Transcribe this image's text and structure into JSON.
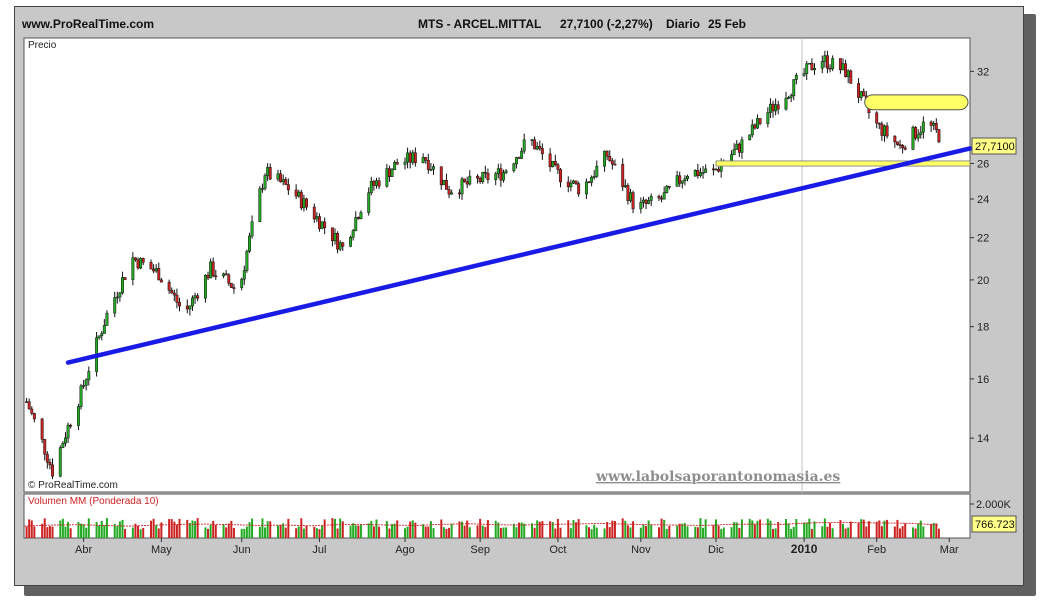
{
  "header": {
    "site": "www.ProRealTime.com",
    "symbol": "MTS - ARCEL.MITTAL",
    "quote": "27,7100 (-2,27%)",
    "period": "Diario",
    "date": "25 Feb"
  },
  "price_panel": {
    "label": "Precio",
    "copyright": "© ProRealTime.com",
    "watermark": "www.labolsaporantonomasia.es",
    "last_price": "27,7100"
  },
  "volume_panel": {
    "label": "Volumen MM (Ponderada 10)",
    "scale_label": "2.000K",
    "last_value": "766.723"
  },
  "colors": {
    "up": "#22aa22",
    "down": "#cc2222",
    "trendline": "#1a1ae6",
    "highlight": "#ffff66",
    "label_box": "#ffff88"
  },
  "chart_data": {
    "type": "candlestick",
    "y_ticks": [
      14,
      16,
      18,
      20,
      22,
      24,
      26,
      32
    ],
    "y_range": [
      12.4,
      34.5
    ],
    "x_labels": [
      "Abr",
      "May",
      "Jun",
      "Jul",
      "Ago",
      "Sep",
      "Oct",
      "Nov",
      "Dic",
      "2010",
      "Feb",
      "Mar"
    ],
    "x_label_dates": [
      "2009-04-01",
      "2009-05-01",
      "2009-06-01",
      "2009-07-01",
      "2009-08-03",
      "2009-09-01",
      "2009-10-01",
      "2009-11-02",
      "2009-12-01",
      "2010-01-04",
      "2010-02-01",
      "2010-03-01"
    ],
    "date_range": [
      "2009-03-09",
      "2010-03-09"
    ],
    "price_series": [
      {
        "date": "2009-03-10",
        "close": 15.2
      },
      {
        "date": "2009-03-20",
        "close": 13.0
      },
      {
        "date": "2009-03-31",
        "close": 15.5
      },
      {
        "date": "2009-04-10",
        "close": 18.5
      },
      {
        "date": "2009-04-20",
        "close": 21.0
      },
      {
        "date": "2009-04-30",
        "close": 20.3
      },
      {
        "date": "2009-05-10",
        "close": 18.5
      },
      {
        "date": "2009-05-20",
        "close": 20.5
      },
      {
        "date": "2009-05-31",
        "close": 19.5
      },
      {
        "date": "2009-06-10",
        "close": 25.5
      },
      {
        "date": "2009-06-20",
        "close": 24.5
      },
      {
        "date": "2009-06-30",
        "close": 23.0
      },
      {
        "date": "2009-07-10",
        "close": 21.5
      },
      {
        "date": "2009-07-20",
        "close": 24.5
      },
      {
        "date": "2009-07-31",
        "close": 26.0
      },
      {
        "date": "2009-08-10",
        "close": 26.5
      },
      {
        "date": "2009-08-20",
        "close": 24.5
      },
      {
        "date": "2009-08-31",
        "close": 25.0
      },
      {
        "date": "2009-09-10",
        "close": 25.5
      },
      {
        "date": "2009-09-20",
        "close": 27.5
      },
      {
        "date": "2009-09-30",
        "close": 25.5
      },
      {
        "date": "2009-10-10",
        "close": 24.5
      },
      {
        "date": "2009-10-20",
        "close": 26.5
      },
      {
        "date": "2009-10-31",
        "close": 23.5
      },
      {
        "date": "2009-11-10",
        "close": 24.0
      },
      {
        "date": "2009-11-20",
        "close": 25.5
      },
      {
        "date": "2009-11-30",
        "close": 25.5
      },
      {
        "date": "2009-12-10",
        "close": 27.0
      },
      {
        "date": "2009-12-20",
        "close": 29.0
      },
      {
        "date": "2009-12-31",
        "close": 31.0
      },
      {
        "date": "2010-01-10",
        "close": 33.0
      },
      {
        "date": "2010-01-20",
        "close": 32.0
      },
      {
        "date": "2010-01-31",
        "close": 28.5
      },
      {
        "date": "2010-02-10",
        "close": 27.0
      },
      {
        "date": "2010-02-20",
        "close": 28.5
      },
      {
        "date": "2010-02-25",
        "close": 27.71
      }
    ],
    "trendline": {
      "from": {
        "date": "2009-03-26",
        "price": 16.6
      },
      "to": {
        "date": "2010-03-09",
        "price": 26.9
      }
    },
    "support_band": {
      "from_date": "2009-12-01",
      "price_low": 25.85,
      "price_high": 26.15
    },
    "resistance_band": {
      "from_date": "2010-02-01",
      "price_low": 29.35,
      "price_high": 30.35
    },
    "volume_ma_estimate": [
      700,
      760,
      780,
      740,
      700,
      760,
      800,
      820,
      780,
      740,
      760,
      720,
      780,
      800,
      760,
      740,
      800,
      840,
      780,
      760,
      800,
      820,
      860,
      820,
      780,
      760,
      740,
      800,
      820,
      800,
      880,
      920,
      900,
      880,
      860,
      767
    ]
  }
}
